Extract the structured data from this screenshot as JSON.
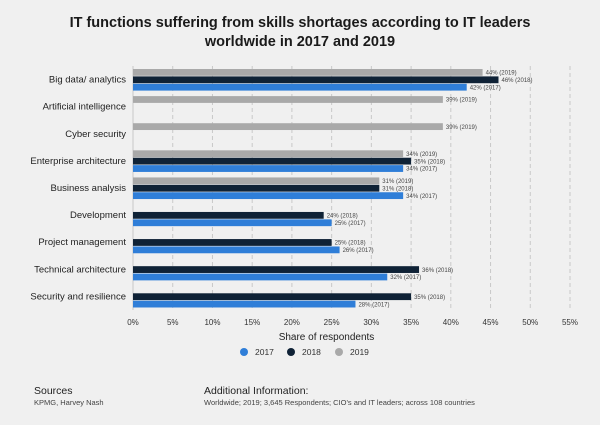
{
  "chart_data": {
    "type": "bar",
    "orientation": "horizontal",
    "title": "IT functions suffering from skills shortages according to IT leaders worldwide in 2017 and 2019",
    "xlabel": "Share of respondents",
    "ylabel": "",
    "xlim": [
      0,
      55
    ],
    "xticks": [
      "0%",
      "5%",
      "10%",
      "15%",
      "20%",
      "25%",
      "30%",
      "35%",
      "40%",
      "45%",
      "50%",
      "55%"
    ],
    "grid": true,
    "legend_position": "bottom",
    "categories": [
      "Big data/ analytics",
      "Artificial intelligence",
      "Cyber security",
      "Enterprise architecture",
      "Business analysis",
      "Development",
      "Project management",
      "Technical architecture",
      "Security and resilience"
    ],
    "series": [
      {
        "name": "2017",
        "color": "#2f7ed8",
        "values": [
          42,
          null,
          null,
          34,
          34,
          25,
          26,
          32,
          28
        ],
        "labels": [
          "42% (2017)",
          "",
          "",
          "34% (2017)",
          "34% (2017)",
          "25% (2017)",
          "26% (2017)",
          "32% (2017)",
          "28% (2017)"
        ]
      },
      {
        "name": "2018",
        "color": "#0f2236",
        "values": [
          46,
          null,
          null,
          35,
          31,
          24,
          25,
          36,
          35
        ],
        "labels": [
          "46% (2018)",
          "",
          "",
          "35% (2018)",
          "31% (2018)",
          "24% (2018)",
          "25% (2018)",
          "36% (2018)",
          "35% (2018)"
        ]
      },
      {
        "name": "2019",
        "color": "#a9a9a9",
        "values": [
          44,
          39,
          39,
          34,
          31,
          null,
          null,
          null,
          null
        ],
        "labels": [
          "44% (2019)",
          "39% (2019)",
          "39% (2019)",
          "34% (2019)",
          "31% (2019)",
          "",
          "",
          "",
          ""
        ]
      }
    ]
  },
  "footer": {
    "sources_heading": "Sources",
    "sources_text": "KPMG, Harvey Nash",
    "info_heading": "Additional Information:",
    "info_text": "Worldwide; 2019; 3,645 Respondents; CIO's and IT leaders; across 108 countries"
  }
}
